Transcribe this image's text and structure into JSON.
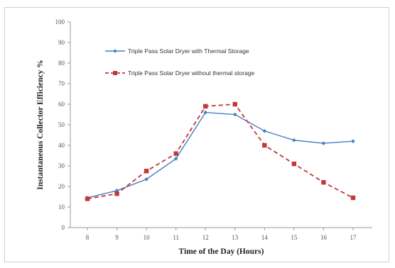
{
  "chart_data": {
    "type": "line",
    "title": "",
    "xlabel": "Time of the Day (Hours)",
    "ylabel": "Instantaneous Collector Efficiency %",
    "x": [
      8,
      9,
      10,
      11,
      12,
      13,
      14,
      15,
      16,
      17
    ],
    "ylim": [
      0,
      100
    ],
    "yticks": [
      0,
      10,
      20,
      30,
      40,
      50,
      60,
      70,
      80,
      90,
      100
    ],
    "grid": false,
    "legend_position": "top-left",
    "series": [
      {
        "name": "Triple Pass Solar Dryer with Thermal Storage",
        "values": [
          14.5,
          18,
          23.5,
          33.5,
          56,
          55,
          47,
          42.5,
          41,
          42
        ],
        "color": "#4a7ec0",
        "marker": "diamond",
        "line": "solid"
      },
      {
        "name": "Triple Pass Solar Dryer without thermal storage",
        "values": [
          14,
          16.5,
          27.5,
          36,
          59,
          60,
          40,
          31,
          22,
          14.5
        ],
        "color": "#c0393b",
        "marker": "square",
        "line": "dashed"
      }
    ]
  }
}
